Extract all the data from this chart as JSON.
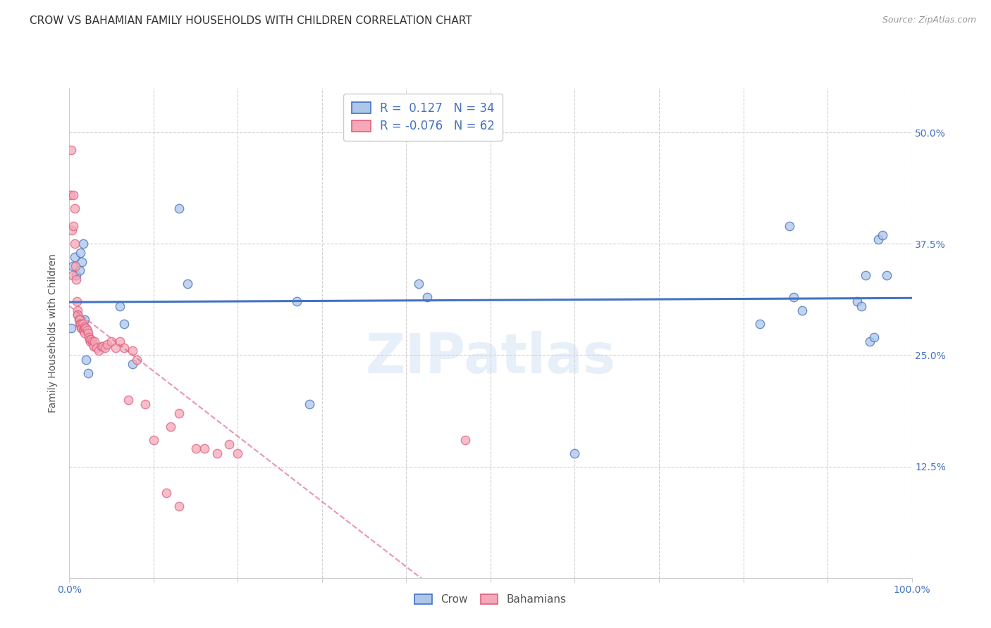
{
  "title": "CROW VS BAHAMIAN FAMILY HOUSEHOLDS WITH CHILDREN CORRELATION CHART",
  "source": "Source: ZipAtlas.com",
  "ylabel": "Family Households with Children",
  "xlim": [
    0.0,
    1.0
  ],
  "ylim": [
    0.0,
    0.55
  ],
  "xticks": [
    0.0,
    0.1,
    0.2,
    0.3,
    0.4,
    0.5,
    0.6,
    0.7,
    0.8,
    0.9,
    1.0
  ],
  "xticklabels": [
    "0.0%",
    "",
    "",
    "",
    "",
    "",
    "",
    "",
    "",
    "",
    "100.0%"
  ],
  "yticks": [
    0.0,
    0.125,
    0.25,
    0.375,
    0.5
  ],
  "yticklabels": [
    "",
    "12.5%",
    "25.0%",
    "37.5%",
    "50.0%"
  ],
  "crow_color": "#aec6e8",
  "crow_edge_color": "#4472c4",
  "bahamas_color": "#f4a8b8",
  "bahamas_edge_color": "#e06080",
  "crow_x": [
    0.002,
    0.004,
    0.006,
    0.008,
    0.01,
    0.012,
    0.013,
    0.015,
    0.016,
    0.018,
    0.02,
    0.022,
    0.06,
    0.065,
    0.075,
    0.13,
    0.14,
    0.27,
    0.285,
    0.415,
    0.425,
    0.6,
    0.82,
    0.855,
    0.86,
    0.87,
    0.935,
    0.94,
    0.945,
    0.95,
    0.955,
    0.96,
    0.965,
    0.97
  ],
  "crow_y": [
    0.28,
    0.35,
    0.36,
    0.34,
    0.295,
    0.345,
    0.365,
    0.355,
    0.375,
    0.29,
    0.245,
    0.23,
    0.305,
    0.285,
    0.24,
    0.415,
    0.33,
    0.31,
    0.195,
    0.33,
    0.315,
    0.14,
    0.285,
    0.395,
    0.315,
    0.3,
    0.31,
    0.305,
    0.34,
    0.265,
    0.27,
    0.38,
    0.385,
    0.34
  ],
  "bahamas_x": [
    0.001,
    0.002,
    0.003,
    0.004,
    0.005,
    0.005,
    0.006,
    0.006,
    0.007,
    0.008,
    0.009,
    0.01,
    0.01,
    0.011,
    0.012,
    0.012,
    0.013,
    0.014,
    0.015,
    0.015,
    0.016,
    0.016,
    0.017,
    0.018,
    0.018,
    0.019,
    0.02,
    0.021,
    0.022,
    0.023,
    0.024,
    0.025,
    0.026,
    0.027,
    0.028,
    0.029,
    0.03,
    0.032,
    0.035,
    0.038,
    0.04,
    0.042,
    0.045,
    0.05,
    0.055,
    0.06,
    0.065,
    0.07,
    0.075,
    0.08,
    0.09,
    0.1,
    0.115,
    0.12,
    0.13,
    0.15,
    0.16,
    0.175,
    0.19,
    0.2,
    0.47,
    0.13
  ],
  "bahamas_y": [
    0.43,
    0.48,
    0.39,
    0.34,
    0.43,
    0.395,
    0.415,
    0.375,
    0.35,
    0.335,
    0.31,
    0.3,
    0.295,
    0.29,
    0.29,
    0.285,
    0.285,
    0.28,
    0.285,
    0.28,
    0.285,
    0.278,
    0.28,
    0.282,
    0.275,
    0.28,
    0.28,
    0.278,
    0.275,
    0.27,
    0.268,
    0.265,
    0.268,
    0.265,
    0.262,
    0.26,
    0.265,
    0.258,
    0.255,
    0.26,
    0.26,
    0.258,
    0.262,
    0.265,
    0.258,
    0.265,
    0.258,
    0.2,
    0.255,
    0.245,
    0.195,
    0.155,
    0.095,
    0.17,
    0.185,
    0.145,
    0.145,
    0.14,
    0.15,
    0.14,
    0.155,
    0.08
  ],
  "watermark": "ZIPatlas",
  "grid_color": "#cccccc",
  "marker_size": 80,
  "marker_alpha": 0.75,
  "title_fontsize": 11,
  "source_fontsize": 9,
  "tick_fontsize": 10,
  "ylabel_fontsize": 10
}
